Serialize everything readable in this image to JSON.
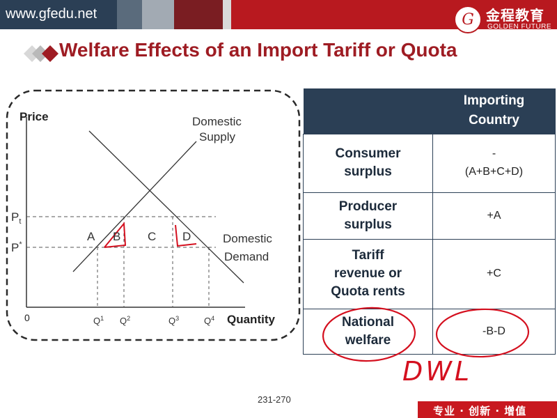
{
  "header": {
    "url": "www.gfedu.net",
    "logo_text_cn": "金程教育",
    "logo_text_en": "GOLDEN FUTURE",
    "logo_mark": "G"
  },
  "slide": {
    "title": "Welfare Effects of an Import Tariff or Quota",
    "page_number": "231-270",
    "footer_slogan": "专业 · 创新 · 增值"
  },
  "graph": {
    "y_axis_label": "Price",
    "x_axis_label": "Quantity",
    "origin": "0",
    "supply_label_1": "Domestic",
    "supply_label_2": "Supply",
    "demand_label_1": "Domestic",
    "demand_label_2": "Demand",
    "price_labels": {
      "pt": "P",
      "pt_sub": "t",
      "pstar": "P",
      "pstar_sup": "*"
    },
    "quantity_labels": [
      {
        "base": "Q",
        "sup": "1"
      },
      {
        "base": "Q",
        "sup": "2"
      },
      {
        "base": "Q",
        "sup": "3"
      },
      {
        "base": "Q",
        "sup": "4"
      }
    ],
    "areas": [
      "A",
      "B",
      "C",
      "D"
    ]
  },
  "table": {
    "header": [
      "",
      "Importing Country"
    ],
    "rows": [
      {
        "label_line1": "Consumer",
        "label_line2": "surplus",
        "label_line3": "",
        "value_line1": "-",
        "value_line2": "(A+B+C+D)"
      },
      {
        "label_line1": "Producer",
        "label_line2": "surplus",
        "label_line3": "",
        "value_line1": "+A",
        "value_line2": ""
      },
      {
        "label_line1": "Tariff",
        "label_line2": "revenue or",
        "label_line3": "Quota rents",
        "value_line1": "+C",
        "value_line2": ""
      },
      {
        "label_line1": "National",
        "label_line2": "welfare",
        "label_line3": "",
        "value_line1": "-B-D",
        "value_line2": ""
      }
    ]
  },
  "annotation": {
    "handwriting": "DWL",
    "ink_color": "#d4101f"
  },
  "colors": {
    "title": "#9e1c23",
    "navy": "#2b3f55",
    "brand_red": "#b8191f"
  }
}
